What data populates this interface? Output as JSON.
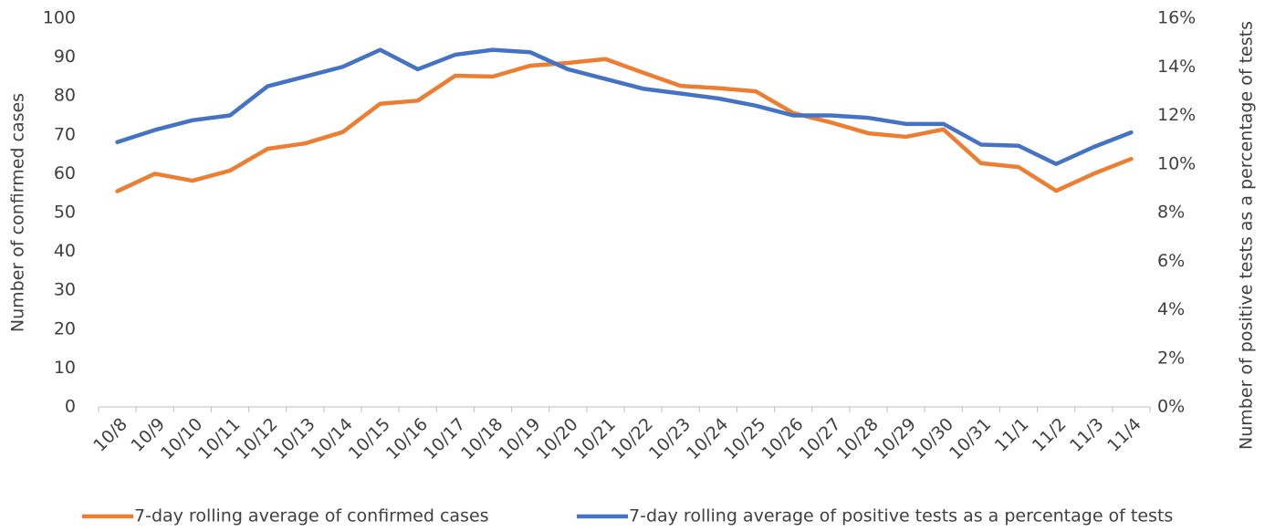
{
  "chart_data": {
    "type": "line",
    "y_label": "Number of confirmed cases",
    "y2_label": "Number of positive tests as a percentage of tests",
    "categories": [
      "10/8",
      "10/9",
      "10/10",
      "10/11",
      "10/12",
      "10/13",
      "10/14",
      "10/15",
      "10/16",
      "10/17",
      "10/18",
      "10/19",
      "10/20",
      "10/21",
      "10/22",
      "10/23",
      "10/24",
      "10/25",
      "10/26",
      "10/27",
      "10/28",
      "10/29",
      "10/30",
      "10/31",
      "11/1",
      "11/2",
      "11/3",
      "11/4"
    ],
    "series": [
      {
        "name": "7-day rolling average of confirmed cases",
        "color": "#ED7D31",
        "values": [
          55.5,
          60,
          58.2,
          60.8,
          66.4,
          67.8,
          70.7,
          78,
          78.8,
          85.2,
          85,
          87.8,
          88.5,
          89.5,
          86,
          82.6,
          82,
          81.2,
          75.6,
          73.2,
          70.4,
          69.5,
          71.4,
          62.7,
          61.7,
          55.6,
          60,
          63.8
        ]
      },
      {
        "name": "7-day rolling average of positive tests as a percentage of tests",
        "color": "#4472C4",
        "axis": "y2",
        "values": [
          10.9,
          11.4,
          11.8,
          12.0,
          13.2,
          13.6,
          14.0,
          14.7,
          13.9,
          14.5,
          14.7,
          14.6,
          13.9,
          13.5,
          13.1,
          12.9,
          12.7,
          12.4,
          12.0,
          12.0,
          11.9,
          11.65,
          11.65,
          10.8,
          10.75,
          10.0,
          10.7,
          11.3
        ]
      }
    ],
    "ylim": [
      0,
      100
    ],
    "yticks": [
      0,
      10,
      20,
      30,
      40,
      50,
      60,
      70,
      80,
      90,
      100
    ],
    "y2lim": [
      0,
      16
    ],
    "y2ticks": [
      {
        "value": 0,
        "label": "0%"
      },
      {
        "value": 2,
        "label": "2%"
      },
      {
        "value": 4,
        "label": "4%"
      },
      {
        "value": 6,
        "label": "6%"
      },
      {
        "value": 8,
        "label": "8%"
      },
      {
        "value": 10,
        "label": "10%"
      },
      {
        "value": 12,
        "label": "12%"
      },
      {
        "value": 14,
        "label": "14%"
      },
      {
        "value": 16,
        "label": "16%"
      }
    ],
    "grid": false,
    "legend": "bottom"
  }
}
